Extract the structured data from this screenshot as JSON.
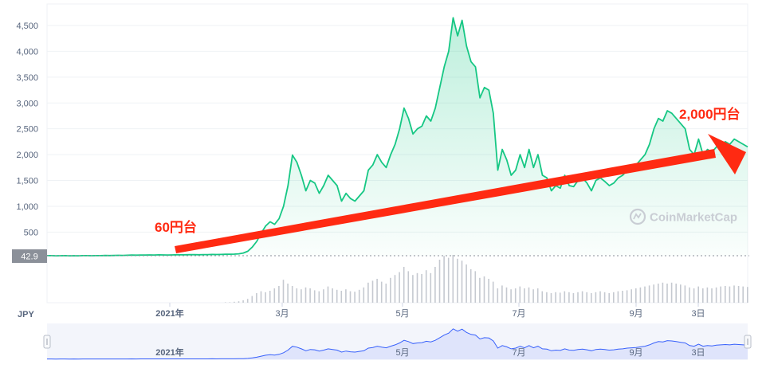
{
  "chart_data": {
    "type": "area",
    "currency_label": "JPY",
    "yticks": [
      500,
      1000,
      1500,
      2000,
      2500,
      3000,
      3500,
      4000,
      4500
    ],
    "ytick_labels": [
      "500",
      "1,000",
      "1,500",
      "2,000",
      "2,500",
      "3,000",
      "3,500",
      "4,000",
      "4,500"
    ],
    "ylim": [
      0,
      4750
    ],
    "current_price_label": "42.9",
    "current_price": 42.9,
    "xticks": [
      "2021年",
      "3月",
      "5月",
      "7月",
      "9月",
      "3日"
    ],
    "navigator_xticks": [
      "2021年",
      "5月",
      "7月",
      "9月",
      "3日"
    ],
    "watermark": "CoinMarketCap",
    "annotations": {
      "start_label": "60円台",
      "end_label": "2,000円台"
    },
    "colors": {
      "line": "#16c784",
      "arrow": "#ff2a12",
      "navigator_fill": "#dfe4fb",
      "navigator_line": "#3861fb",
      "annotation_text": "#ff2a12"
    },
    "series": [
      {
        "values": [
          45,
          44,
          42,
          43,
          44,
          42,
          43,
          42,
          44,
          45,
          43,
          44,
          45,
          47,
          46,
          48,
          50,
          49,
          52,
          55,
          54,
          56,
          55,
          58,
          57,
          60,
          58,
          57,
          59,
          62,
          60,
          61,
          63,
          64,
          62,
          65,
          64,
          68,
          66,
          67,
          70,
          72,
          74,
          80,
          95,
          130,
          210,
          320,
          480,
          620,
          700,
          650,
          760,
          1000,
          1400,
          1990,
          1850,
          1600,
          1300,
          1500,
          1450,
          1250,
          1400,
          1600,
          1500,
          1400,
          1100,
          1250,
          1150,
          1100,
          1200,
          1300,
          1700,
          1800,
          2000,
          1850,
          1750,
          2000,
          2200,
          2500,
          2900,
          2700,
          2400,
          2500,
          2550,
          2750,
          2650,
          2900,
          3300,
          3700,
          4000,
          4650,
          4300,
          4600,
          4100,
          3800,
          3700,
          3100,
          3300,
          3250,
          2800,
          1700,
          2100,
          1900,
          1600,
          1700,
          2000,
          1750,
          2100,
          1750,
          2000,
          1600,
          1550,
          1300,
          1400,
          1350,
          1600,
          1400,
          1380,
          1500,
          1550,
          1450,
          1300,
          1500,
          1550,
          1480,
          1400,
          1450,
          1550,
          1600,
          1700,
          1750,
          1800,
          1900,
          2000,
          2200,
          2500,
          2700,
          2650,
          2850,
          2800,
          2700,
          2600,
          2500,
          2100,
          2000,
          2300,
          2000,
          2100,
          2050,
          2150,
          2200,
          2250,
          2200,
          2300,
          2250,
          2200,
          2150
        ],
        "volume": [
          0,
          0,
          0,
          0,
          0,
          0,
          0,
          0,
          0,
          0,
          0,
          0,
          0,
          0,
          0,
          0,
          0,
          0,
          0,
          0,
          0,
          0,
          0,
          0,
          0,
          0,
          0,
          0,
          0,
          0,
          0,
          0,
          0,
          0,
          0,
          0,
          0,
          0,
          0,
          0,
          1,
          1,
          2,
          3,
          5,
          8,
          14,
          20,
          24,
          22,
          25,
          30,
          35,
          48,
          40,
          35,
          30,
          28,
          32,
          30,
          26,
          24,
          28,
          34,
          30,
          27,
          25,
          28,
          24,
          23,
          27,
          32,
          42,
          46,
          50,
          44,
          40,
          52,
          58,
          64,
          75,
          66,
          58,
          62,
          60,
          68,
          62,
          75,
          90,
          98,
          94,
          100,
          92,
          88,
          80,
          70,
          66,
          52,
          55,
          50,
          44,
          30,
          36,
          32,
          28,
          30,
          34,
          30,
          32,
          28,
          30,
          24,
          22,
          20,
          22,
          21,
          24,
          22,
          20,
          22,
          24,
          22,
          20,
          22,
          24,
          22,
          20,
          22,
          24,
          25,
          26,
          28,
          30,
          32,
          34,
          36,
          38,
          40,
          42,
          40,
          42,
          40,
          38,
          36,
          32,
          30,
          34,
          30,
          32,
          30,
          32,
          34,
          35,
          34,
          36,
          35,
          34,
          33
        ]
      }
    ]
  }
}
